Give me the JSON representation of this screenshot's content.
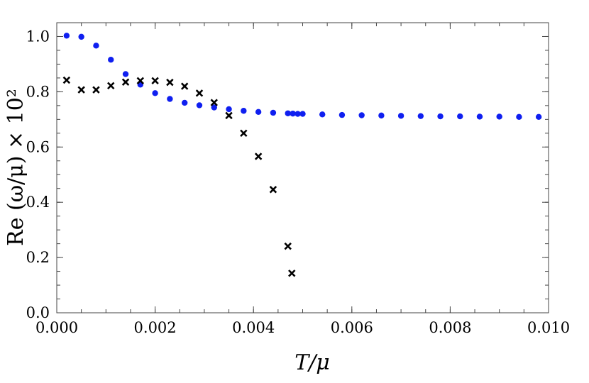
{
  "chart_data": {
    "type": "scatter",
    "xlabel": "T/μ",
    "ylabel": "Re (ω/μ) × 10²",
    "xlim": [
      0.0,
      0.01
    ],
    "ylim": [
      0.0,
      1.05
    ],
    "x_ticks": [
      0.0,
      0.002,
      0.004,
      0.006,
      0.008,
      0.01
    ],
    "x_tick_labels": [
      "0.000",
      "0.002",
      "0.004",
      "0.006",
      "0.008",
      "0.010"
    ],
    "y_ticks": [
      0.0,
      0.2,
      0.4,
      0.6,
      0.8,
      1.0
    ],
    "y_tick_labels": [
      "0.0",
      "0.2",
      "0.4",
      "0.6",
      "0.8",
      "1.0"
    ],
    "grid": false,
    "series": [
      {
        "marker": "circle",
        "color": "#0f1ff0",
        "points": [
          [
            0.0002,
            1.003
          ],
          [
            0.0005,
            0.999
          ],
          [
            0.0008,
            0.967
          ],
          [
            0.0011,
            0.916
          ],
          [
            0.0014,
            0.864
          ],
          [
            0.0017,
            0.826
          ],
          [
            0.002,
            0.795
          ],
          [
            0.0023,
            0.774
          ],
          [
            0.0026,
            0.76
          ],
          [
            0.0029,
            0.751
          ],
          [
            0.0032,
            0.743
          ],
          [
            0.0035,
            0.737
          ],
          [
            0.0038,
            0.731
          ],
          [
            0.0041,
            0.727
          ],
          [
            0.0044,
            0.724
          ],
          [
            0.0047,
            0.722
          ],
          [
            0.0048,
            0.721
          ],
          [
            0.0049,
            0.72
          ],
          [
            0.005,
            0.72
          ],
          [
            0.0054,
            0.718
          ],
          [
            0.0058,
            0.716
          ],
          [
            0.0062,
            0.715
          ],
          [
            0.0066,
            0.714
          ],
          [
            0.007,
            0.713
          ],
          [
            0.0074,
            0.712
          ],
          [
            0.0078,
            0.711
          ],
          [
            0.0082,
            0.711
          ],
          [
            0.0086,
            0.71
          ],
          [
            0.009,
            0.71
          ],
          [
            0.0094,
            0.709
          ],
          [
            0.0098,
            0.709
          ]
        ]
      },
      {
        "marker": "cross",
        "color": "#000000",
        "points": [
          [
            0.0002,
            0.842
          ],
          [
            0.0005,
            0.807
          ],
          [
            0.0008,
            0.807
          ],
          [
            0.0011,
            0.822
          ],
          [
            0.0014,
            0.835
          ],
          [
            0.0017,
            0.84
          ],
          [
            0.002,
            0.84
          ],
          [
            0.0023,
            0.834
          ],
          [
            0.0026,
            0.82
          ],
          [
            0.0029,
            0.795
          ],
          [
            0.0032,
            0.761
          ],
          [
            0.0035,
            0.714
          ],
          [
            0.0038,
            0.65
          ],
          [
            0.0041,
            0.566
          ],
          [
            0.0044,
            0.446
          ],
          [
            0.0047,
            0.241
          ],
          [
            0.00478,
            0.143
          ]
        ]
      }
    ]
  }
}
